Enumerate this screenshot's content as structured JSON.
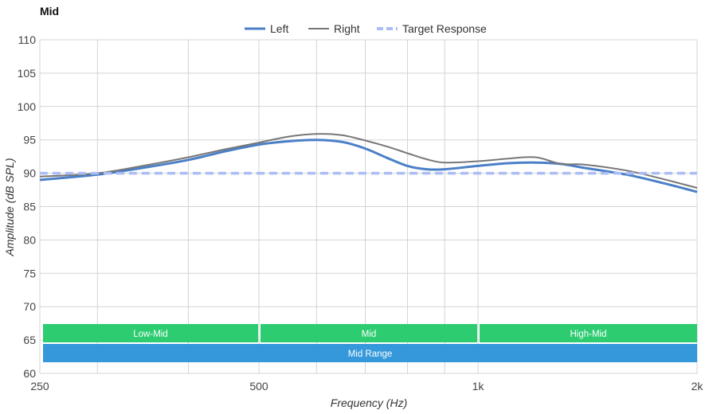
{
  "chart_data": {
    "type": "line",
    "title": "Mid",
    "xlabel": "Frequency (Hz)",
    "ylabel": "Amplitude (dB SPL)",
    "x_scale": "log",
    "xlim": [
      250,
      2000
    ],
    "ylim": [
      60,
      110
    ],
    "y_ticks": [
      60,
      65,
      70,
      75,
      80,
      85,
      90,
      95,
      100,
      105,
      110
    ],
    "x_ticks": [
      {
        "value": 250,
        "label": "250"
      },
      {
        "value": 500,
        "label": "500"
      },
      {
        "value": 1000,
        "label": "1k"
      },
      {
        "value": 2000,
        "label": "2k"
      }
    ],
    "x_gridlines": [
      250,
      300,
      400,
      500,
      600,
      700,
      800,
      900,
      1000,
      2000
    ],
    "grid": true,
    "legend_position": "top-center",
    "series": [
      {
        "name": "Left",
        "color": "#4a7fc7",
        "style": "solid-thick",
        "points": [
          [
            250,
            89.0
          ],
          [
            300,
            89.8
          ],
          [
            350,
            90.9
          ],
          [
            400,
            92.0
          ],
          [
            450,
            93.3
          ],
          [
            500,
            94.3
          ],
          [
            550,
            94.8
          ],
          [
            600,
            95.0
          ],
          [
            650,
            94.7
          ],
          [
            700,
            93.7
          ],
          [
            750,
            92.3
          ],
          [
            800,
            91.1
          ],
          [
            850,
            90.6
          ],
          [
            900,
            90.6
          ],
          [
            1000,
            91.1
          ],
          [
            1100,
            91.5
          ],
          [
            1200,
            91.6
          ],
          [
            1300,
            91.4
          ],
          [
            1400,
            90.8
          ],
          [
            1600,
            89.8
          ],
          [
            1800,
            88.5
          ],
          [
            2000,
            87.2
          ]
        ]
      },
      {
        "name": "Right",
        "color": "#777777",
        "style": "solid",
        "points": [
          [
            250,
            89.5
          ],
          [
            300,
            90.0
          ],
          [
            350,
            91.2
          ],
          [
            400,
            92.4
          ],
          [
            450,
            93.6
          ],
          [
            500,
            94.6
          ],
          [
            550,
            95.5
          ],
          [
            600,
            95.9
          ],
          [
            650,
            95.7
          ],
          [
            700,
            94.9
          ],
          [
            750,
            94.0
          ],
          [
            800,
            93.0
          ],
          [
            850,
            92.1
          ],
          [
            900,
            91.6
          ],
          [
            1000,
            91.8
          ],
          [
            1100,
            92.2
          ],
          [
            1200,
            92.4
          ],
          [
            1300,
            91.4
          ],
          [
            1400,
            91.3
          ],
          [
            1600,
            90.4
          ],
          [
            1800,
            89.1
          ],
          [
            2000,
            87.8
          ]
        ]
      },
      {
        "name": "Target Response",
        "color": "#aabdf5",
        "style": "dashed",
        "points": [
          [
            250,
            90
          ],
          [
            2000,
            90
          ]
        ]
      }
    ],
    "bands": [
      {
        "label": "Low-Mid",
        "from": 250,
        "to": 500,
        "color": "#2ecc71",
        "row": 1
      },
      {
        "label": "Mid",
        "from": 500,
        "to": 1000,
        "color": "#2ecc71",
        "row": 1
      },
      {
        "label": "High-Mid",
        "from": 1000,
        "to": 2000,
        "color": "#2ecc71",
        "row": 1
      },
      {
        "label": "Mid Range",
        "from": 250,
        "to": 2000,
        "color": "#3498db",
        "row": 2
      }
    ]
  }
}
